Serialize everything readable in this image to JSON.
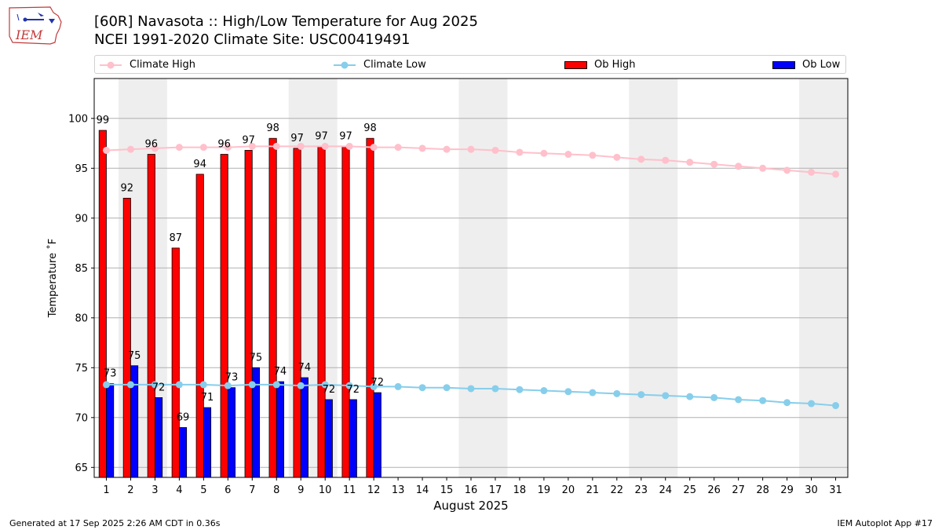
{
  "header": {
    "logo_text": "IEM",
    "title_line1": "[60R] Navasota :: High/Low Temperature for Aug 2025",
    "title_line2": "NCEI 1991-2020 Climate Site: USC00419491"
  },
  "legend": {
    "climate_high": "Climate High",
    "climate_low": "Climate Low",
    "ob_high": "Ob High",
    "ob_low": "Ob Low"
  },
  "colors": {
    "climate_high": "#ffc0cb",
    "climate_low": "#87ceeb",
    "ob_high": "#ff0000",
    "ob_low": "#0000ff",
    "weekend_band": "#eeeeee",
    "grid": "#b0b0b0"
  },
  "chart_data": {
    "type": "bar",
    "title": "[60R] Navasota :: High/Low Temperature for Aug 2025",
    "subtitle": "NCEI 1991-2020 Climate Site: USC00419491",
    "xlabel": "August 2025",
    "ylabel": "Temperature $^\\circ$F",
    "x": [
      1,
      2,
      3,
      4,
      5,
      6,
      7,
      8,
      9,
      10,
      11,
      12,
      13,
      14,
      15,
      16,
      17,
      18,
      19,
      20,
      21,
      22,
      23,
      24,
      25,
      26,
      27,
      28,
      29,
      30,
      31
    ],
    "xlim": [
      0.5,
      31.5
    ],
    "ylim": [
      64,
      104
    ],
    "yticks": [
      65,
      70,
      75,
      80,
      85,
      90,
      95,
      100
    ],
    "grid": true,
    "legend_position": "top",
    "weekend_days": [
      2,
      3,
      9,
      10,
      16,
      17,
      23,
      24,
      30,
      31
    ],
    "series": [
      {
        "name": "Ob High",
        "kind": "bar",
        "x": [
          1,
          2,
          3,
          4,
          5,
          6,
          7,
          8,
          9,
          10,
          11,
          12
        ],
        "values": [
          99,
          92,
          96,
          87,
          94,
          96,
          97,
          98,
          97,
          97,
          97,
          98
        ],
        "exact": [
          98.8,
          92,
          96.4,
          87,
          94.4,
          96.4,
          96.8,
          98,
          97,
          97.2,
          97.2,
          98
        ]
      },
      {
        "name": "Ob Low",
        "kind": "bar",
        "x": [
          1,
          2,
          3,
          4,
          5,
          6,
          7,
          8,
          9,
          10,
          11,
          12
        ],
        "values": [
          73,
          75,
          72,
          69,
          71,
          73,
          75,
          74,
          74,
          72,
          72,
          72
        ],
        "exact": [
          73.4,
          75.2,
          72,
          69,
          71,
          73,
          75,
          73.6,
          74,
          71.8,
          71.8,
          72.5
        ]
      },
      {
        "name": "Climate High",
        "kind": "line",
        "values": [
          96.8,
          96.9,
          97.0,
          97.1,
          97.1,
          97.1,
          97.2,
          97.2,
          97.2,
          97.2,
          97.2,
          97.1,
          97.1,
          97.0,
          96.9,
          96.9,
          96.8,
          96.6,
          96.5,
          96.4,
          96.3,
          96.1,
          95.9,
          95.8,
          95.6,
          95.4,
          95.2,
          95.0,
          94.8,
          94.6,
          94.4
        ]
      },
      {
        "name": "Climate Low",
        "kind": "line",
        "values": [
          73.3,
          73.3,
          73.3,
          73.3,
          73.3,
          73.2,
          73.3,
          73.3,
          73.2,
          73.3,
          73.2,
          73.1,
          73.1,
          73.0,
          73.0,
          72.9,
          72.9,
          72.8,
          72.7,
          72.6,
          72.5,
          72.4,
          72.3,
          72.2,
          72.1,
          72.0,
          71.8,
          71.7,
          71.5,
          71.4,
          71.2
        ]
      }
    ]
  },
  "footer": {
    "generated": "Generated at 17 Sep 2025 2:26 AM CDT in 0.36s",
    "app": "IEM Autoplot App #17"
  }
}
